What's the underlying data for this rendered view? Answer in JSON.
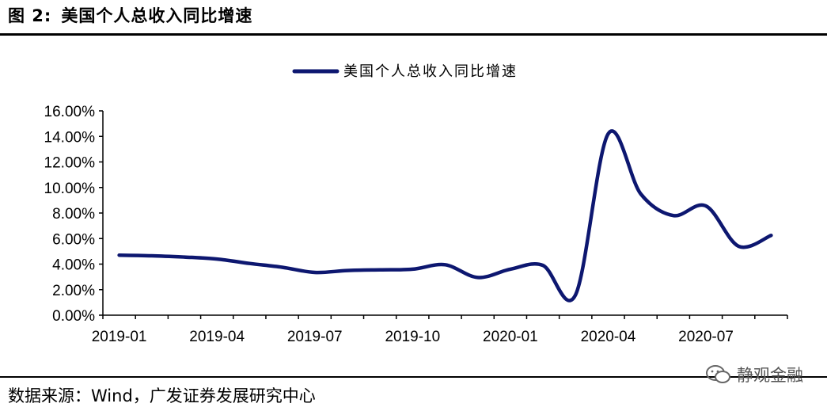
{
  "header": {
    "figure_label": "图 2:",
    "figure_title": "美国个人总收入同比增速"
  },
  "footer": {
    "source_text": "数据来源：Wind，广发证券发展研究中心",
    "watermark_text": "静观金融"
  },
  "colors": {
    "series_line": "#0d1770",
    "axis": "#000000"
  },
  "chart_data": {
    "type": "line",
    "title": "",
    "xlabel": "",
    "ylabel": "",
    "ylim": [
      0,
      16
    ],
    "y_ticks": [
      "0.00%",
      "2.00%",
      "4.00%",
      "6.00%",
      "8.00%",
      "10.00%",
      "12.00%",
      "14.00%",
      "16.00%"
    ],
    "x_tick_labels": [
      "2019-01",
      "2019-04",
      "2019-07",
      "2019-10",
      "2020-01",
      "2020-04",
      "2020-07"
    ],
    "grid": false,
    "legend_position": "top-center",
    "categories": [
      "2019-01",
      "2019-02",
      "2019-03",
      "2019-04",
      "2019-05",
      "2019-06",
      "2019-07",
      "2019-08",
      "2019-09",
      "2019-10",
      "2019-11",
      "2019-12",
      "2020-01",
      "2020-02",
      "2020-03",
      "2020-04",
      "2020-05",
      "2020-06",
      "2020-07",
      "2020-08",
      "2020-09"
    ],
    "series": [
      {
        "name": "美国个人总收入同比增速",
        "values": [
          4.7,
          4.65,
          4.55,
          4.4,
          4.05,
          3.75,
          3.35,
          3.5,
          3.55,
          3.6,
          3.95,
          2.95,
          3.6,
          3.9,
          1.6,
          14.2,
          9.5,
          7.8,
          8.55,
          5.4,
          6.25
        ]
      }
    ]
  }
}
